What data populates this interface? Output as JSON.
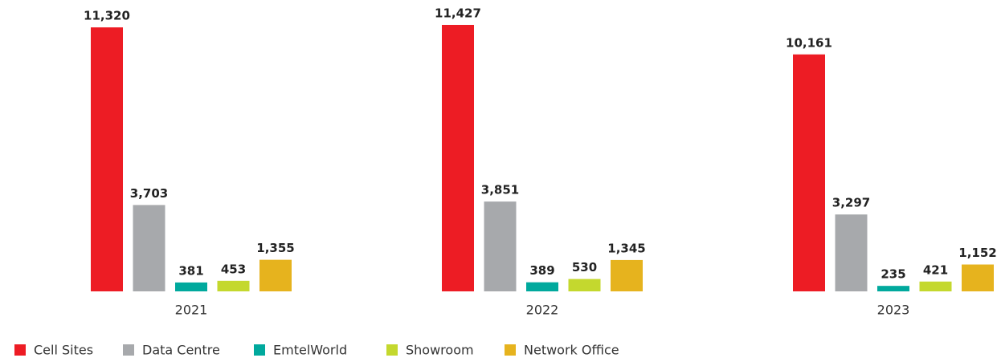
{
  "chart_data": {
    "type": "bar",
    "categories": [
      "2021",
      "2022",
      "2023"
    ],
    "series": [
      {
        "name": "Cell Sites",
        "color": "#ed1c24",
        "values": [
          11320,
          11427,
          10161
        ],
        "value_labels": [
          "11,320",
          "11,427",
          "10,161"
        ]
      },
      {
        "name": "Data Centre",
        "color": "#a7a9ac",
        "values": [
          3703,
          3851,
          3297
        ],
        "value_labels": [
          "3,703",
          "3,851",
          "3,297"
        ]
      },
      {
        "name": "EmtelWorld",
        "color": "#00a99d",
        "values": [
          381,
          389,
          235
        ],
        "value_labels": [
          "381",
          "389",
          "235"
        ]
      },
      {
        "name": "Showroom",
        "color": "#c4d82e",
        "values": [
          453,
          530,
          421
        ],
        "value_labels": [
          "453",
          "530",
          "421"
        ]
      },
      {
        "name": "Network Office",
        "color": "#e6b31e",
        "values": [
          1355,
          1345,
          1152
        ],
        "value_labels": [
          "1,355",
          "1,345",
          "1,152"
        ]
      }
    ]
  }
}
